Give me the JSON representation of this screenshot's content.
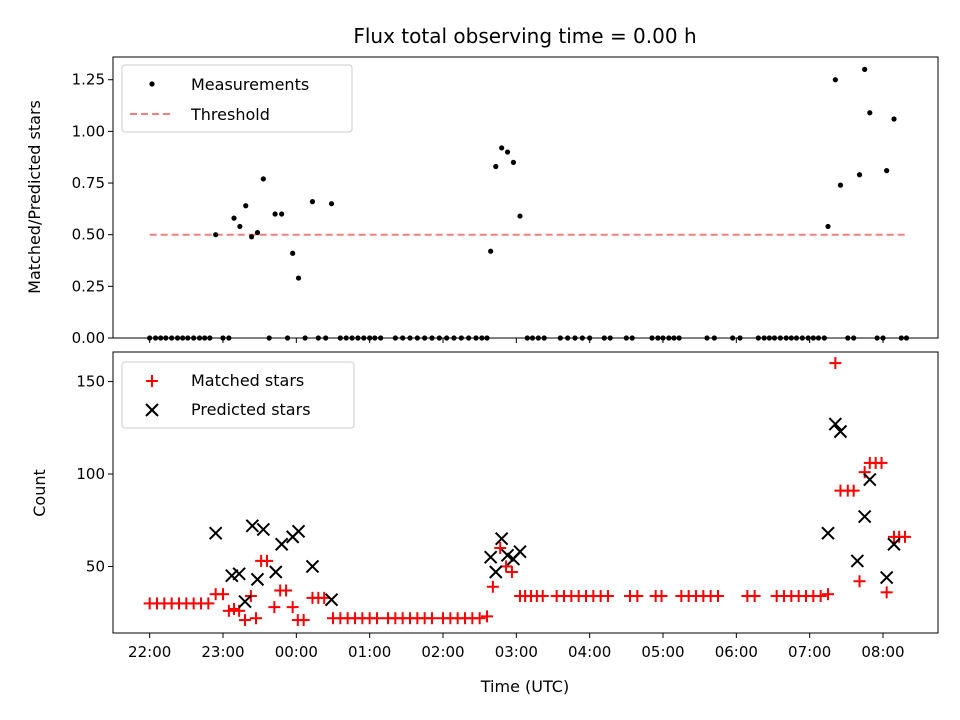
{
  "chart_data": [
    {
      "type": "scatter",
      "title": "Flux total observing time = 0.00 h",
      "xlabel": "",
      "ylabel": "Matched/Predicted stars",
      "xlim": [
        -0.5,
        10.75
      ],
      "ylim": [
        0.0,
        1.36
      ],
      "yticks": [
        0.0,
        0.25,
        0.5,
        0.75,
        1.0,
        1.25
      ],
      "ytick_labels": [
        "0.00",
        "0.25",
        "0.50",
        "0.75",
        "1.00",
        "1.25"
      ],
      "legend_position": "upper-left",
      "threshold": {
        "name": "Threshold",
        "value": 0.5,
        "x": [
          0.0,
          10.3
        ],
        "color": "#f08080"
      },
      "series": [
        {
          "name": "Measurements",
          "color": "#000000",
          "points": [
            [
              0.0,
              0
            ],
            [
              0.08,
              0
            ],
            [
              0.15,
              0
            ],
            [
              0.22,
              0
            ],
            [
              0.3,
              0
            ],
            [
              0.38,
              0
            ],
            [
              0.45,
              0
            ],
            [
              0.52,
              0
            ],
            [
              0.6,
              0
            ],
            [
              0.68,
              0
            ],
            [
              0.75,
              0
            ],
            [
              0.82,
              0
            ],
            [
              0.9,
              0.5
            ],
            [
              1.0,
              0
            ],
            [
              1.08,
              0
            ],
            [
              1.15,
              0.58
            ],
            [
              1.23,
              0.54
            ],
            [
              1.31,
              0.64
            ],
            [
              1.39,
              0.49
            ],
            [
              1.47,
              0.51
            ],
            [
              1.55,
              0.77
            ],
            [
              1.63,
              0
            ],
            [
              1.71,
              0.6
            ],
            [
              1.8,
              0.6
            ],
            [
              1.88,
              0
            ],
            [
              1.95,
              0.41
            ],
            [
              2.03,
              0.29
            ],
            [
              2.12,
              0
            ],
            [
              2.22,
              0.66
            ],
            [
              2.3,
              0
            ],
            [
              2.4,
              0
            ],
            [
              2.48,
              0.65
            ],
            [
              2.6,
              0
            ],
            [
              2.68,
              0
            ],
            [
              2.76,
              0
            ],
            [
              2.84,
              0
            ],
            [
              2.92,
              0
            ],
            [
              3.0,
              0
            ],
            [
              3.07,
              0
            ],
            [
              3.15,
              0
            ],
            [
              3.35,
              0
            ],
            [
              3.45,
              0
            ],
            [
              3.55,
              0
            ],
            [
              3.65,
              0
            ],
            [
              3.75,
              0
            ],
            [
              3.85,
              0
            ],
            [
              3.95,
              0
            ],
            [
              4.05,
              0
            ],
            [
              4.15,
              0
            ],
            [
              4.25,
              0
            ],
            [
              4.35,
              0
            ],
            [
              4.45,
              0
            ],
            [
              4.53,
              0
            ],
            [
              4.6,
              0
            ],
            [
              4.65,
              0.42
            ],
            [
              4.72,
              0.83
            ],
            [
              4.8,
              0.92
            ],
            [
              4.88,
              0.9
            ],
            [
              4.96,
              0.85
            ],
            [
              5.05,
              0.59
            ],
            [
              5.15,
              0
            ],
            [
              5.22,
              0
            ],
            [
              5.3,
              0
            ],
            [
              5.38,
              0
            ],
            [
              5.6,
              0
            ],
            [
              5.7,
              0
            ],
            [
              5.8,
              0
            ],
            [
              5.9,
              0
            ],
            [
              6.0,
              0
            ],
            [
              6.2,
              0
            ],
            [
              6.28,
              0
            ],
            [
              6.5,
              0
            ],
            [
              6.58,
              0
            ],
            [
              6.85,
              0
            ],
            [
              6.93,
              0
            ],
            [
              7.0,
              0
            ],
            [
              7.08,
              0
            ],
            [
              7.15,
              0
            ],
            [
              7.22,
              0
            ],
            [
              7.6,
              0
            ],
            [
              7.7,
              0
            ],
            [
              7.95,
              0
            ],
            [
              8.05,
              0
            ],
            [
              8.3,
              0
            ],
            [
              8.38,
              0
            ],
            [
              8.45,
              0
            ],
            [
              8.52,
              0
            ],
            [
              8.6,
              0
            ],
            [
              8.68,
              0
            ],
            [
              8.75,
              0
            ],
            [
              8.82,
              0
            ],
            [
              8.9,
              0
            ],
            [
              8.98,
              0
            ],
            [
              9.05,
              0
            ],
            [
              9.12,
              0
            ],
            [
              9.2,
              0
            ],
            [
              9.25,
              0.54
            ],
            [
              9.35,
              1.25
            ],
            [
              9.42,
              0.74
            ],
            [
              9.52,
              0
            ],
            [
              9.6,
              0
            ],
            [
              9.68,
              0.79
            ],
            [
              9.75,
              1.3
            ],
            [
              9.82,
              1.09
            ],
            [
              9.92,
              0
            ],
            [
              10.0,
              0
            ],
            [
              10.05,
              0.81
            ],
            [
              10.15,
              1.06
            ],
            [
              10.25,
              0
            ],
            [
              10.32,
              0
            ]
          ]
        }
      ]
    },
    {
      "type": "scatter",
      "title": "",
      "xlabel": "Time (UTC)",
      "ylabel": "Count",
      "xlim": [
        -0.5,
        10.75
      ],
      "ylim": [
        14,
        166
      ],
      "yticks": [
        50,
        100,
        150
      ],
      "ytick_labels": [
        "50",
        "100",
        "150"
      ],
      "xticks": [
        0,
        1,
        2,
        3,
        4,
        5,
        6,
        7,
        8,
        9,
        10
      ],
      "xtick_labels": [
        "22:00",
        "23:00",
        "00:00",
        "01:00",
        "02:00",
        "03:00",
        "04:00",
        "05:00",
        "06:00",
        "07:00",
        "08:00"
      ],
      "legend_position": "upper-left",
      "series": [
        {
          "name": "Matched stars",
          "marker": "plus",
          "color": "#ff0000",
          "points": [
            [
              0.0,
              30
            ],
            [
              0.1,
              30
            ],
            [
              0.2,
              30
            ],
            [
              0.3,
              30
            ],
            [
              0.4,
              30
            ],
            [
              0.5,
              30
            ],
            [
              0.6,
              30
            ],
            [
              0.7,
              30
            ],
            [
              0.8,
              30
            ],
            [
              0.9,
              35
            ],
            [
              1.0,
              35
            ],
            [
              1.08,
              26
            ],
            [
              1.15,
              27
            ],
            [
              1.22,
              26
            ],
            [
              1.3,
              21
            ],
            [
              1.38,
              34
            ],
            [
              1.45,
              22
            ],
            [
              1.52,
              53
            ],
            [
              1.6,
              53
            ],
            [
              1.7,
              28
            ],
            [
              1.78,
              37
            ],
            [
              1.86,
              37
            ],
            [
              1.95,
              28
            ],
            [
              2.02,
              21
            ],
            [
              2.1,
              21
            ],
            [
              2.22,
              33
            ],
            [
              2.3,
              33
            ],
            [
              2.38,
              33
            ],
            [
              2.5,
              22
            ],
            [
              2.6,
              22
            ],
            [
              2.7,
              22
            ],
            [
              2.8,
              22
            ],
            [
              2.9,
              22
            ],
            [
              3.0,
              22
            ],
            [
              3.1,
              22
            ],
            [
              3.25,
              22
            ],
            [
              3.35,
              22
            ],
            [
              3.45,
              22
            ],
            [
              3.55,
              22
            ],
            [
              3.65,
              22
            ],
            [
              3.75,
              22
            ],
            [
              3.85,
              22
            ],
            [
              4.0,
              22
            ],
            [
              4.1,
              22
            ],
            [
              4.2,
              22
            ],
            [
              4.3,
              22
            ],
            [
              4.4,
              22
            ],
            [
              4.5,
              22
            ],
            [
              4.6,
              23
            ],
            [
              4.68,
              39
            ],
            [
              4.78,
              60
            ],
            [
              4.86,
              50
            ],
            [
              4.94,
              47
            ],
            [
              5.05,
              34
            ],
            [
              5.12,
              34
            ],
            [
              5.2,
              34
            ],
            [
              5.28,
              34
            ],
            [
              5.36,
              34
            ],
            [
              5.55,
              34
            ],
            [
              5.65,
              34
            ],
            [
              5.75,
              34
            ],
            [
              5.85,
              34
            ],
            [
              5.95,
              34
            ],
            [
              6.05,
              34
            ],
            [
              6.15,
              34
            ],
            [
              6.25,
              34
            ],
            [
              6.55,
              34
            ],
            [
              6.65,
              34
            ],
            [
              6.9,
              34
            ],
            [
              6.98,
              34
            ],
            [
              7.25,
              34
            ],
            [
              7.35,
              34
            ],
            [
              7.45,
              34
            ],
            [
              7.55,
              34
            ],
            [
              7.65,
              34
            ],
            [
              7.75,
              34
            ],
            [
              8.15,
              34
            ],
            [
              8.25,
              34
            ],
            [
              8.55,
              34
            ],
            [
              8.65,
              34
            ],
            [
              8.75,
              34
            ],
            [
              8.85,
              34
            ],
            [
              8.95,
              34
            ],
            [
              9.05,
              34
            ],
            [
              9.15,
              34
            ],
            [
              9.25,
              35
            ],
            [
              9.35,
              160
            ],
            [
              9.42,
              91
            ],
            [
              9.52,
              91
            ],
            [
              9.6,
              91
            ],
            [
              9.68,
              42
            ],
            [
              9.75,
              101
            ],
            [
              9.82,
              106
            ],
            [
              9.9,
              106
            ],
            [
              9.98,
              106
            ],
            [
              10.05,
              36
            ],
            [
              10.15,
              66
            ],
            [
              10.22,
              66
            ],
            [
              10.3,
              66
            ]
          ]
        },
        {
          "name": "Predicted stars",
          "marker": "x",
          "color": "#000000",
          "points": [
            [
              0.9,
              68
            ],
            [
              1.12,
              45
            ],
            [
              1.22,
              46
            ],
            [
              1.3,
              31
            ],
            [
              1.4,
              72
            ],
            [
              1.47,
              43
            ],
            [
              1.55,
              70
            ],
            [
              1.72,
              47
            ],
            [
              1.8,
              62
            ],
            [
              1.95,
              66
            ],
            [
              2.03,
              69
            ],
            [
              2.22,
              50
            ],
            [
              2.48,
              32
            ],
            [
              4.65,
              55
            ],
            [
              4.72,
              47
            ],
            [
              4.8,
              65
            ],
            [
              4.88,
              56
            ],
            [
              4.96,
              54
            ],
            [
              5.05,
              58
            ],
            [
              9.25,
              68
            ],
            [
              9.35,
              127
            ],
            [
              9.42,
              123
            ],
            [
              9.65,
              53
            ],
            [
              9.75,
              77
            ],
            [
              9.82,
              97
            ],
            [
              10.05,
              44
            ],
            [
              10.15,
              62
            ]
          ]
        }
      ]
    }
  ]
}
